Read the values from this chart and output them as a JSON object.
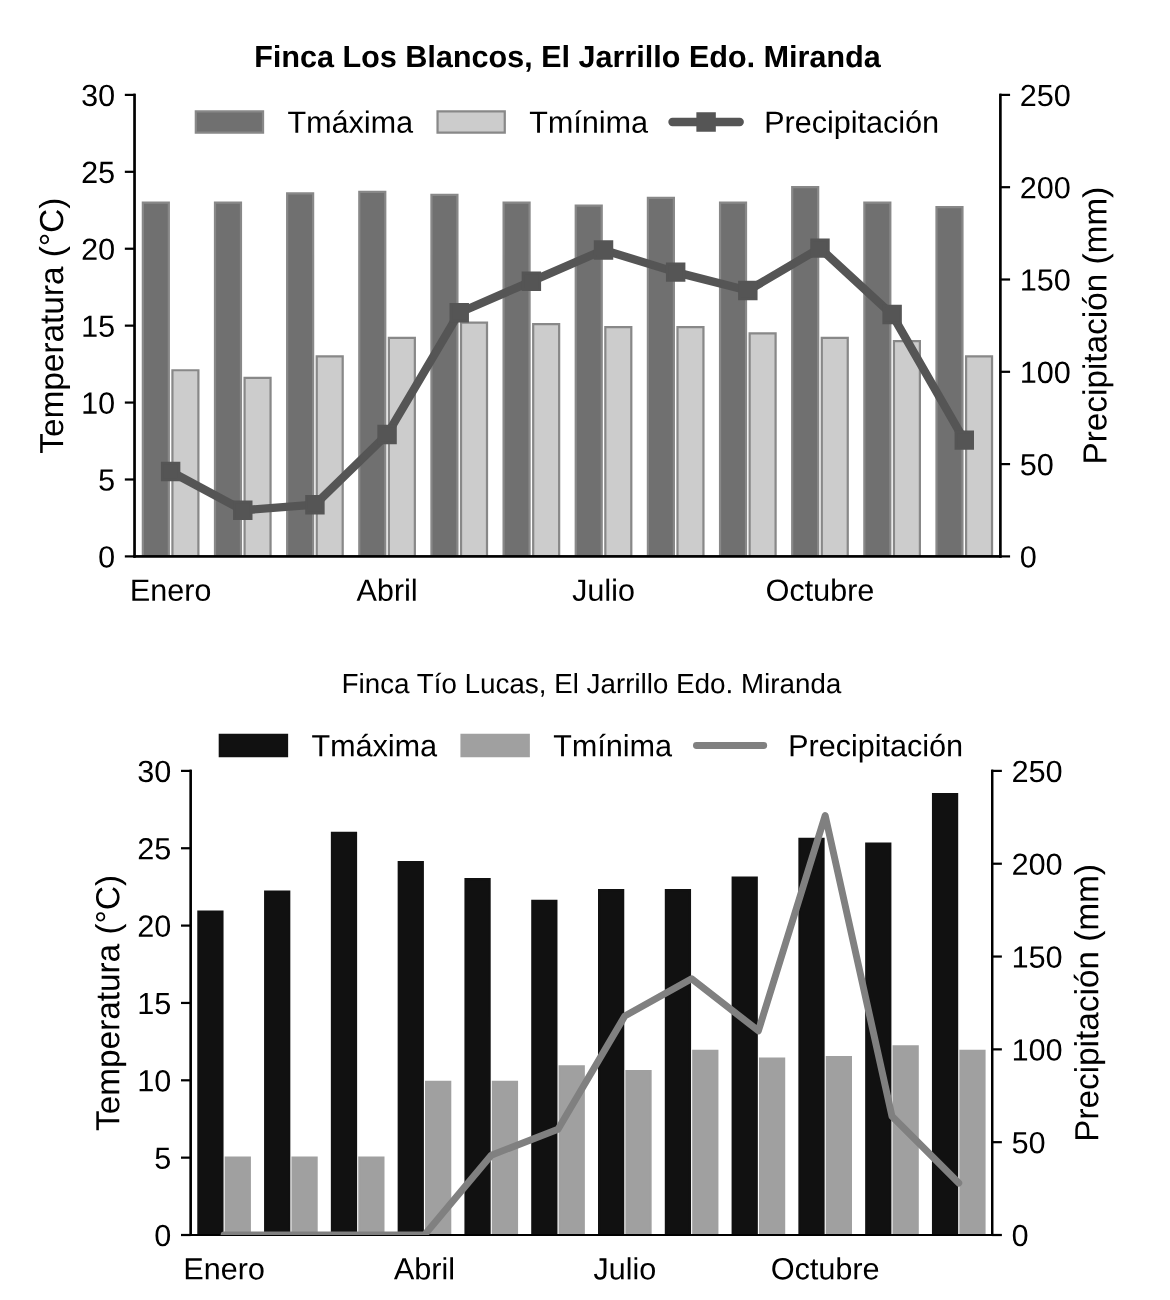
{
  "chart_data": [
    {
      "type": "bar",
      "title": "Finca Los Blancos, El Jarrillo Edo. Miranda",
      "ylabel": "Temperatura (°C)",
      "y2label": "Precipitación (mm)",
      "categories": [
        "Enero",
        null,
        null,
        "Abril",
        null,
        null,
        "Julio",
        null,
        null,
        "Octubre",
        null,
        null
      ],
      "series": [
        {
          "name": "Tmáxima",
          "color": "#707070",
          "values": [
            23,
            23,
            23.6,
            23.7,
            23.5,
            23,
            22.8,
            23.3,
            23,
            24,
            23,
            22.7
          ]
        },
        {
          "name": "Tmínima",
          "color": "#cccccc",
          "values": [
            12.1,
            11.6,
            13,
            14.2,
            15.2,
            15.1,
            14.9,
            14.9,
            14.5,
            14.2,
            14,
            13
          ]
        },
        {
          "name": "Precipitación",
          "type": "line",
          "axis": "y2",
          "color": "#555555",
          "marker": "square",
          "values": [
            46,
            25,
            28,
            66,
            132,
            149,
            166,
            154,
            144,
            167,
            131,
            63
          ]
        }
      ],
      "ylim": [
        0,
        30
      ],
      "yticks": [
        0,
        5,
        10,
        15,
        20,
        25,
        30
      ],
      "y2lim": [
        0,
        250
      ],
      "y2ticks": [
        0,
        50,
        100,
        150,
        200,
        250
      ],
      "legend": "top",
      "grid": false
    },
    {
      "type": "bar",
      "title": "Finca Tío Lucas, El Jarrillo Edo. Miranda",
      "ylabel": "Temperatura (°C)",
      "y2label": "Precipitación (mm)",
      "categories": [
        "Enero",
        null,
        null,
        "Abril",
        null,
        null,
        "Julio",
        null,
        null,
        "Octubre",
        null,
        null
      ],
      "series": [
        {
          "name": "Tmáxima",
          "color": "#111111",
          "values": [
            20.9,
            22.2,
            26,
            24.1,
            23,
            21.6,
            22.3,
            22.3,
            23.1,
            25.6,
            25.3,
            28.5
          ]
        },
        {
          "name": "Tmínima",
          "color": "#a0a0a0",
          "values": [
            5,
            5,
            5,
            9.9,
            9.9,
            10.9,
            10.6,
            11.9,
            11.4,
            11.5,
            12.2,
            11.9
          ]
        },
        {
          "name": "Precipitación",
          "type": "line",
          "axis": "y2",
          "color": "#808080",
          "values": [
            0,
            0,
            0,
            0,
            43,
            57,
            118,
            138,
            110,
            226,
            64,
            28
          ]
        }
      ],
      "ylim": [
        0,
        30
      ],
      "yticks": [
        0,
        5,
        10,
        15,
        20,
        25,
        30
      ],
      "y2lim": [
        0,
        250
      ],
      "y2ticks": [
        0,
        50,
        100,
        150,
        200,
        250
      ],
      "legend": "top",
      "grid": false
    }
  ]
}
